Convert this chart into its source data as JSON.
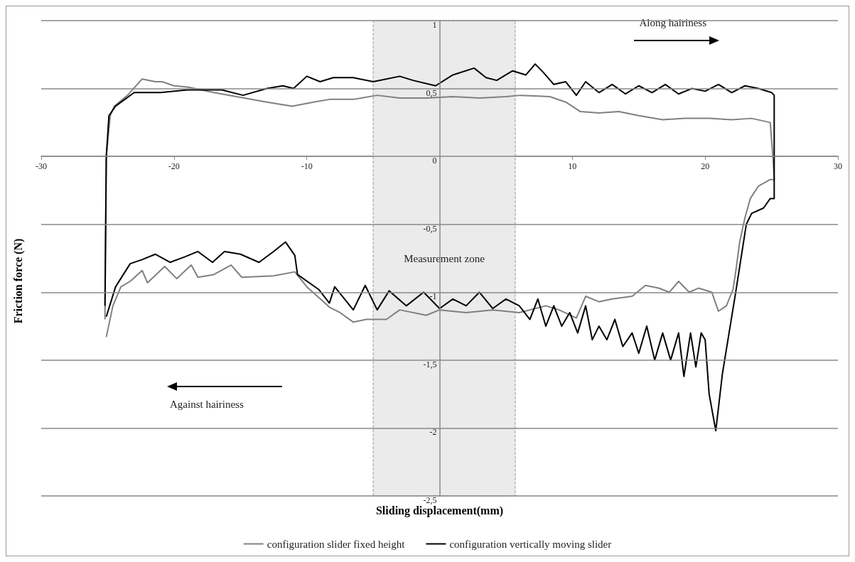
{
  "chart_data": {
    "type": "line",
    "xlabel": "Sliding displacement(mm)",
    "ylabel": "Friction force (N)",
    "xlim": [
      -30,
      30
    ],
    "xticks": [
      -30,
      -20,
      -10,
      10,
      20,
      30
    ],
    "ylim": [
      -2.5,
      1
    ],
    "yticks": [
      {
        "value": -2.5,
        "label": "-2,5"
      },
      {
        "value": -2,
        "label": "-2"
      },
      {
        "value": -1.5,
        "label": "-1,5"
      },
      {
        "value": -1,
        "label": "-1"
      },
      {
        "value": -0.5,
        "label": "-0,5"
      },
      0,
      {
        "value": 0.5,
        "label": "0,5"
      },
      1
    ],
    "grid": "y",
    "legend": "bottom",
    "marker": "none",
    "line_style": "solid",
    "bands": [
      {
        "axis": "x",
        "from": -5,
        "to": 5.7,
        "label": "Measurement zone",
        "color": "#ebebeb"
      }
    ],
    "annotations": [
      "Along hairiness",
      "Against hairiness"
    ],
    "series": [
      {
        "name": "configuration slider fixed height",
        "color": "#808080",
        "x": [
          -25.2,
          -25.1,
          -24.8,
          -24.5,
          -23.5,
          -22.4,
          -21.4,
          -20.9,
          -20,
          -18.9,
          -17,
          -15.3,
          -13,
          -11.1,
          -9.5,
          -8.3,
          -6.5,
          -4.7,
          -3,
          -1,
          1,
          3,
          5,
          6.1,
          8.3,
          9.5,
          10.6,
          12,
          13.5,
          15,
          16.8,
          18.5,
          20.3,
          22,
          23.5,
          24.9,
          25.1,
          25.2,
          24.9,
          24,
          23.4,
          23,
          22.6,
          22.3,
          22.1,
          21.6,
          21,
          20.5,
          19.5,
          18.8,
          18,
          17.3,
          16.5,
          15.5,
          14.5,
          13,
          12,
          11,
          10.3,
          9,
          8,
          6,
          4,
          2,
          0,
          -1,
          -3,
          -4,
          -5.5,
          -6.5,
          -7.5,
          -8.3,
          -9.2,
          -10,
          -10.9,
          -12.5,
          -14.9,
          -15.7,
          -17,
          -18.2,
          -18.7,
          -19.8,
          -20.7,
          -22,
          -22.4,
          -23.3,
          -24,
          -24.6,
          -25.1
        ],
        "values": [
          -1.2,
          0,
          0.3,
          0.37,
          0.45,
          0.57,
          0.55,
          0.55,
          0.52,
          0.51,
          0.47,
          0.44,
          0.4,
          0.37,
          0.4,
          0.42,
          0.42,
          0.45,
          0.43,
          0.43,
          0.44,
          0.43,
          0.44,
          0.45,
          0.44,
          0.4,
          0.33,
          0.32,
          0.33,
          0.3,
          0.27,
          0.28,
          0.28,
          0.27,
          0.28,
          0.25,
          0,
          -0.17,
          -0.17,
          -0.22,
          -0.31,
          -0.45,
          -0.63,
          -0.85,
          -0.98,
          -1.1,
          -1.14,
          -1,
          -0.97,
          -1,
          -0.92,
          -1,
          -0.97,
          -0.95,
          -1.03,
          -1.05,
          -1.07,
          -1.03,
          -1.19,
          -1.13,
          -1.1,
          -1.15,
          -1.13,
          -1.15,
          -1.13,
          -1.17,
          -1.13,
          -1.2,
          -1.2,
          -1.22,
          -1.15,
          -1.11,
          -1.03,
          -0.96,
          -0.85,
          -0.88,
          -0.89,
          -0.8,
          -0.87,
          -0.89,
          -0.8,
          -0.9,
          -0.81,
          -0.93,
          -0.84,
          -0.92,
          -0.96,
          -1.1,
          -1.33
        ]
      },
      {
        "name": "configuration vertically moving slider",
        "color": "#000000",
        "x": [
          -25.2,
          -25.1,
          -24.9,
          -24.4,
          -23,
          -21,
          -19,
          -16.4,
          -14.8,
          -13,
          -11.8,
          -11,
          -10,
          -9,
          -8,
          -6.5,
          -5,
          -3,
          -2,
          -0.3,
          1,
          2.6,
          3.5,
          4.3,
          5.5,
          6.5,
          7.2,
          7.8,
          8.6,
          9.5,
          10.3,
          11,
          12,
          13,
          14,
          15,
          16,
          17,
          18,
          19,
          20,
          21,
          22,
          23,
          24,
          25,
          25.2,
          25.2,
          24.9,
          24.4,
          23.5,
          23.1,
          22.7,
          22.3,
          21.8,
          21.3,
          20.8,
          20.3,
          20,
          19.7,
          19.3,
          18.9,
          18.4,
          18,
          17.4,
          16.8,
          16.2,
          15.6,
          15,
          14.5,
          13.8,
          13.2,
          12.6,
          12,
          11.5,
          11,
          10.4,
          9.8,
          9.2,
          8.6,
          8,
          7.4,
          6.8,
          6,
          5,
          4,
          3,
          2,
          1,
          0,
          -1.2,
          -2.5,
          -3.8,
          -4.7,
          -5.6,
          -6.5,
          -7.9,
          -8.3,
          -9.1,
          -10.7,
          -10.9,
          -11.6,
          -12.5,
          -13.6,
          -15,
          -16.2,
          -17.1,
          -18.2,
          -19.2,
          -20.3,
          -21.4,
          -22.4,
          -23.3,
          -24.4,
          -25.1
        ],
        "values": [
          -1.1,
          0,
          0.3,
          0.37,
          0.47,
          0.47,
          0.49,
          0.49,
          0.45,
          0.5,
          0.52,
          0.5,
          0.59,
          0.55,
          0.58,
          0.58,
          0.55,
          0.59,
          0.56,
          0.52,
          0.6,
          0.65,
          0.58,
          0.56,
          0.63,
          0.6,
          0.68,
          0.62,
          0.53,
          0.55,
          0.45,
          0.55,
          0.47,
          0.53,
          0.46,
          0.52,
          0.47,
          0.53,
          0.46,
          0.5,
          0.48,
          0.53,
          0.47,
          0.52,
          0.5,
          0.47,
          0.45,
          -0.31,
          -0.31,
          -0.38,
          -0.42,
          -0.5,
          -0.75,
          -1,
          -1.3,
          -1.6,
          -2.02,
          -1.75,
          -1.35,
          -1.3,
          -1.55,
          -1.3,
          -1.62,
          -1.3,
          -1.5,
          -1.3,
          -1.5,
          -1.25,
          -1.45,
          -1.3,
          -1.4,
          -1.2,
          -1.35,
          -1.25,
          -1.35,
          -1.1,
          -1.3,
          -1.15,
          -1.25,
          -1.1,
          -1.25,
          -1.05,
          -1.2,
          -1.1,
          -1.05,
          -1.12,
          -1,
          -1.1,
          -1.05,
          -1.12,
          -1,
          -1.1,
          -0.99,
          -1.13,
          -0.95,
          -1.13,
          -0.96,
          -1.08,
          -0.98,
          -0.87,
          -0.73,
          -0.63,
          -0.7,
          -0.78,
          -0.72,
          -0.7,
          -0.78,
          -0.7,
          -0.74,
          -0.78,
          -0.72,
          -0.76,
          -0.79,
          -0.96,
          -1.18
        ]
      }
    ]
  }
}
